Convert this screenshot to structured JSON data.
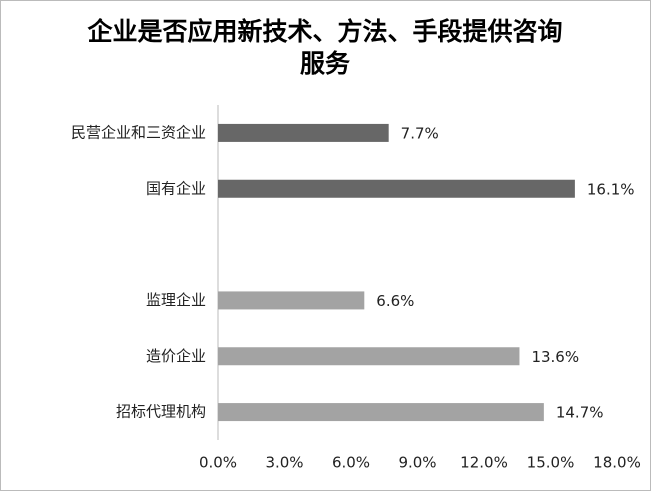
{
  "chart_data": {
    "type": "hbar",
    "title": "企业是否应用新技术、方法、手段提供咨询服务",
    "categories": [
      "民营企业和三资企业",
      "国有企业",
      null,
      "监理企业",
      "造价企业",
      "招标代理机构"
    ],
    "values": [
      7.7,
      16.1,
      null,
      6.6,
      13.6,
      14.7
    ],
    "value_labels": [
      "7.7%",
      "16.1%",
      null,
      "6.6%",
      "13.6%",
      "14.7%"
    ],
    "colors": [
      "#676767",
      "#676767",
      null,
      "#a3a3a3",
      "#a3a3a3",
      "#a3a3a3"
    ],
    "xlim": [
      0,
      18
    ],
    "xticks": [
      {
        "value": 0,
        "label": "0.0%"
      },
      {
        "value": 3,
        "label": "3.0%"
      },
      {
        "value": 6,
        "label": "6.0%"
      },
      {
        "value": 9,
        "label": "9.0%"
      },
      {
        "value": 12,
        "label": "12.0%"
      },
      {
        "value": 15,
        "label": "15.0%"
      },
      {
        "value": 18,
        "label": "18.0%"
      }
    ],
    "grid": false
  }
}
